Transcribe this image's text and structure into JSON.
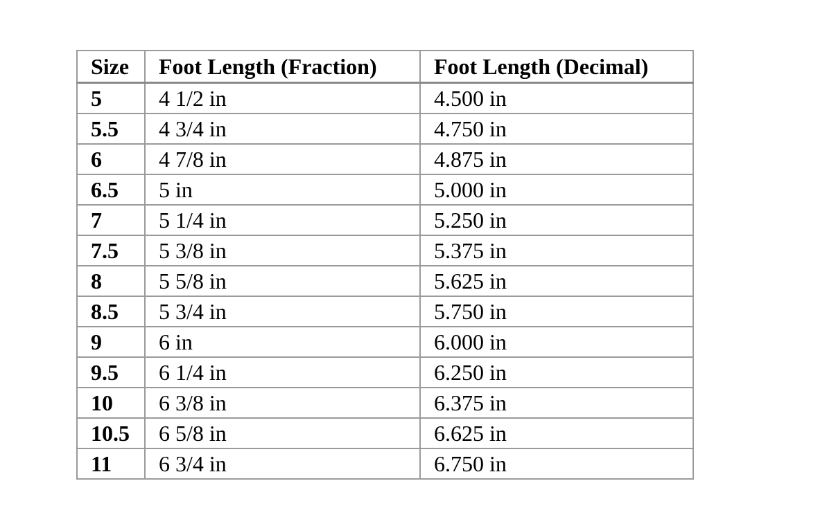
{
  "table": {
    "headers": [
      "Size",
      "Foot Length (Fraction)",
      "Foot Length (Decimal)"
    ],
    "rows": [
      [
        "5",
        "4 1/2 in",
        "4.500 in"
      ],
      [
        "5.5",
        "4 3/4 in",
        "4.750 in"
      ],
      [
        "6",
        "4 7/8 in",
        "4.875 in"
      ],
      [
        "6.5",
        "5 in",
        "5.000 in"
      ],
      [
        "7",
        "5 1/4 in",
        "5.250 in"
      ],
      [
        "7.5",
        "5 3/8 in",
        "5.375 in"
      ],
      [
        "8",
        "5 5/8 in",
        "5.625 in"
      ],
      [
        "8.5",
        "5 3/4 in",
        "5.750 in"
      ],
      [
        "9",
        "6 in",
        "6.000 in"
      ],
      [
        "9.5",
        "6 1/4 in",
        "6.250 in"
      ],
      [
        "10",
        "6 3/8 in",
        "6.375 in"
      ],
      [
        "10.5",
        "6 5/8 in",
        "6.625 in"
      ],
      [
        "11",
        "6 3/4 in",
        "6.750 in"
      ]
    ]
  }
}
